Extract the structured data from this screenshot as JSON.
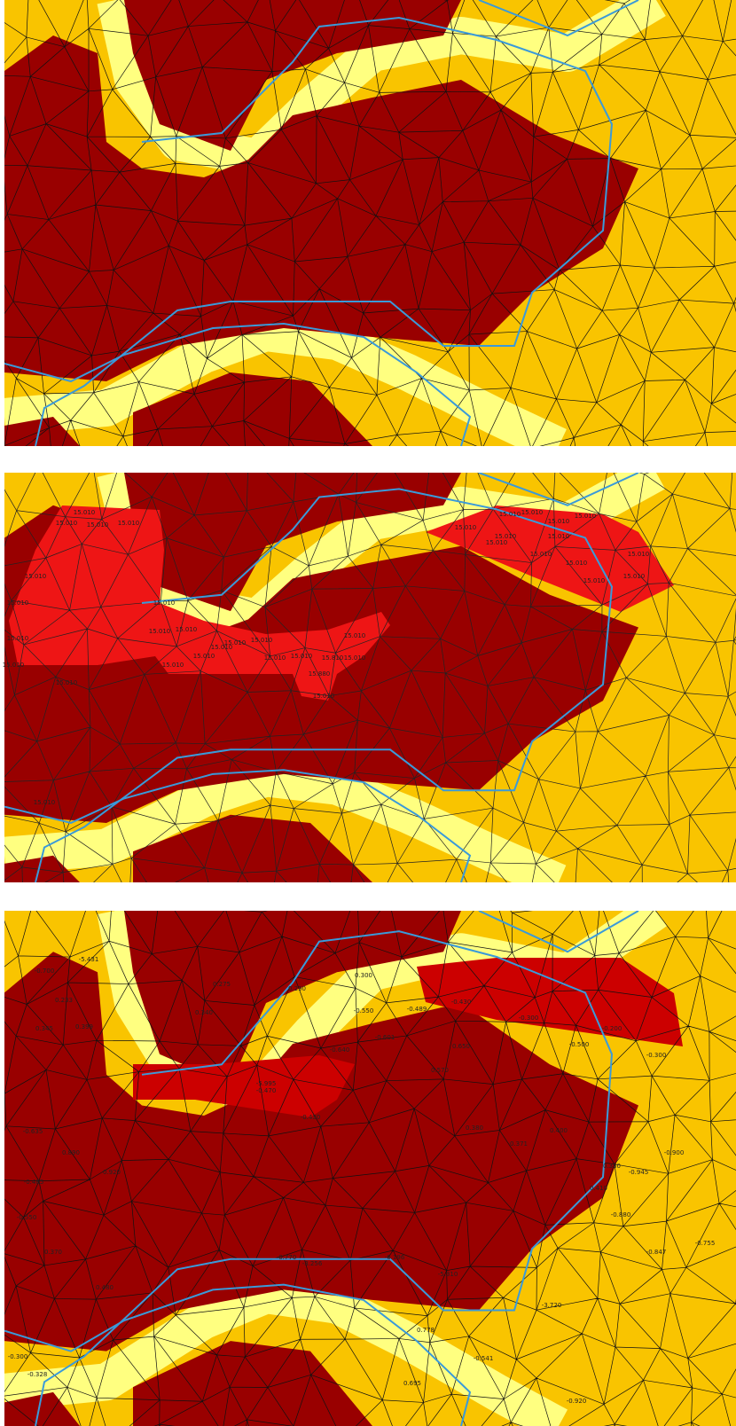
{
  "panel_2_labels": [
    "15.010",
    "15.010",
    "15.010",
    "15.010",
    "15.010",
    "15.010",
    "15.010",
    "15.010",
    "15.010",
    "15.010",
    "15.010",
    "15.010",
    "15.010",
    "15.010",
    "15.010",
    "15.010",
    "15.010",
    "15.010",
    "15.810",
    "15.010",
    "15.880",
    "15.010",
    "15.010",
    "15.010",
    "15.010",
    "15.010",
    "15.010",
    "15.010",
    "15.010",
    "15.010",
    "15.010",
    "15.010",
    "15.010",
    "15.010",
    "15.010",
    "15.010",
    "15.010",
    "15.010"
  ],
  "panel_3_labels": [
    "0.275",
    "0.290",
    "0.300",
    "0.340",
    "0.399",
    "0.345",
    "0.233",
    "-0.700",
    "-5.431",
    "-0.550",
    "-0.489",
    "-0.601",
    "-0.640",
    "-0.430",
    "0.650",
    "0.570",
    "-0.300",
    "-0.500",
    "-0.200",
    "-0.300",
    "0.380",
    "0.400",
    "0.371",
    "0.410",
    "0.330",
    "-0.900",
    "-0.945",
    "-0.880",
    "-0.847",
    "-0.755",
    "-0.920",
    "-0.541",
    "-3.720",
    "-5.310",
    "-5.995",
    "-0.430",
    "-0.470",
    "0.920",
    "0.890",
    "-0.635",
    "-0.485",
    "-0.550",
    "0.370",
    "0.480",
    "-0.770",
    "-3.256",
    "-6.196",
    "-0.300",
    "-0.328",
    "0.695",
    "0.778"
  ]
}
